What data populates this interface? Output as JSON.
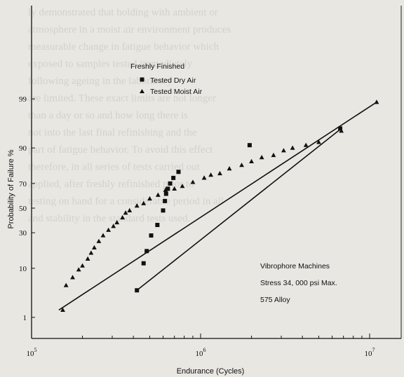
{
  "background_text": [
    "ly demonstrated that holding with ambient or",
    "atmosphere in a moist air environment produces",
    "measurable change in fatigue behavior which",
    "exposed to samples tested immediately",
    "following ageing in the laboratory",
    "are limited. These exact limits are not longer",
    "than a day or so and how long there is",
    "not into the last final refinishing and the",
    "part of fatigue behavior. To avoid this effect",
    "therefore, in all series of tests carried out",
    "applied, after freshly refinished prior to",
    "testing on hand for a considerable period in all",
    "and stability in the standard tests used."
  ],
  "chart_data": {
    "type": "scatter",
    "title": "",
    "xlabel": "Endurance (Cycles)",
    "ylabel": "Probability of Failure %",
    "x_scale": "log",
    "y_scale": "probability",
    "xlim": [
      100000,
      12000000
    ],
    "ylim": [
      1,
      99.9
    ],
    "x_ticks": [
      {
        "value": 100000,
        "base": "10",
        "exp": "5"
      },
      {
        "value": 1000000,
        "base": "10",
        "exp": "6"
      },
      {
        "value": 10000000,
        "base": "10",
        "exp": "7"
      }
    ],
    "y_ticks": [
      "1",
      "10",
      "30",
      "50",
      "70",
      "90",
      "99"
    ],
    "legend": {
      "title": "Freshly Finished",
      "position": "top-center",
      "entries": [
        {
          "name": "Tested Dry Air",
          "marker": "square"
        },
        {
          "name": "Tested Moist Air",
          "marker": "triangle"
        }
      ]
    },
    "annotation": [
      "Vibrophore Machines",
      "Stress 34, 000 psi Max.",
      "575 Alloy"
    ],
    "series": [
      {
        "name": "Tested Dry Air",
        "marker": "square",
        "fit": [
          [
            420000,
            4
          ],
          [
            6800000,
            95.5
          ]
        ],
        "points": [
          [
            420000,
            4
          ],
          [
            460000,
            12
          ],
          [
            480000,
            18
          ],
          [
            510000,
            28
          ],
          [
            555000,
            36
          ],
          [
            600000,
            48
          ],
          [
            615000,
            56
          ],
          [
            625000,
            62
          ],
          [
            640000,
            66
          ],
          [
            660000,
            70
          ],
          [
            690000,
            74
          ],
          [
            740000,
            78
          ],
          [
            1950000,
            91
          ],
          [
            6700000,
            95.5
          ]
        ]
      },
      {
        "name": "Tested Moist Air",
        "marker": "triangle",
        "fit": [
          [
            145000,
            1.5
          ],
          [
            11000000,
            98.8
          ]
        ],
        "points": [
          [
            153000,
            1.5
          ],
          [
            160000,
            5
          ],
          [
            175000,
            7
          ],
          [
            190000,
            9.5
          ],
          [
            200000,
            11
          ],
          [
            215000,
            14
          ],
          [
            225000,
            17
          ],
          [
            235000,
            20
          ],
          [
            250000,
            24
          ],
          [
            265000,
            28
          ],
          [
            285000,
            32
          ],
          [
            305000,
            35
          ],
          [
            320000,
            38
          ],
          [
            345000,
            42
          ],
          [
            360000,
            46
          ],
          [
            380000,
            48
          ],
          [
            420000,
            52
          ],
          [
            460000,
            54
          ],
          [
            500000,
            58
          ],
          [
            560000,
            61
          ],
          [
            620000,
            65
          ],
          [
            700000,
            66
          ],
          [
            780000,
            68
          ],
          [
            900000,
            71
          ],
          [
            1050000,
            74
          ],
          [
            1150000,
            76
          ],
          [
            1300000,
            77
          ],
          [
            1480000,
            80
          ],
          [
            1750000,
            82
          ],
          [
            2000000,
            84
          ],
          [
            2300000,
            86
          ],
          [
            2700000,
            87
          ],
          [
            3100000,
            89
          ],
          [
            3500000,
            90
          ],
          [
            4200000,
            91
          ],
          [
            5000000,
            92
          ],
          [
            6800000,
            95
          ],
          [
            11000000,
            98.8
          ]
        ]
      }
    ]
  }
}
